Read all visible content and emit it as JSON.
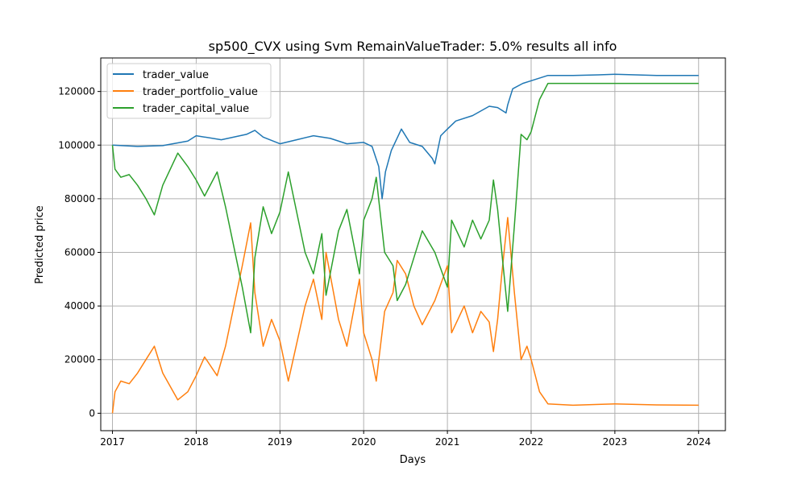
{
  "chart_data": {
    "type": "line",
    "title": "sp500_CVX using Svm RemainValueTrader: 5.0% results all info",
    "xlabel": "Days",
    "ylabel": "Predicted price",
    "xlim": [
      2016.86,
      2024.32
    ],
    "ylim": [
      -6500,
      132500
    ],
    "xticks": [
      2017,
      2018,
      2019,
      2020,
      2021,
      2022,
      2023,
      2024
    ],
    "xtick_labels": [
      "2017",
      "2018",
      "2019",
      "2020",
      "2021",
      "2022",
      "2023",
      "2024"
    ],
    "yticks": [
      0,
      20000,
      40000,
      60000,
      80000,
      100000,
      120000
    ],
    "ytick_labels": [
      "0",
      "20000",
      "40000",
      "60000",
      "80000",
      "100000",
      "120000"
    ],
    "grid": true,
    "legend_position": "top-left",
    "series": [
      {
        "name": "trader_value",
        "color": "#1f77b4",
        "points": [
          [
            2017.0,
            100000
          ],
          [
            2017.3,
            99500
          ],
          [
            2017.6,
            99800
          ],
          [
            2017.9,
            101500
          ],
          [
            2018.0,
            103500
          ],
          [
            2018.3,
            102000
          ],
          [
            2018.6,
            104000
          ],
          [
            2018.7,
            105500
          ],
          [
            2018.8,
            103000
          ],
          [
            2019.0,
            100500
          ],
          [
            2019.2,
            102000
          ],
          [
            2019.4,
            103500
          ],
          [
            2019.6,
            102500
          ],
          [
            2019.8,
            100500
          ],
          [
            2020.0,
            101000
          ],
          [
            2020.1,
            99500
          ],
          [
            2020.18,
            92000
          ],
          [
            2020.22,
            80000
          ],
          [
            2020.26,
            90000
          ],
          [
            2020.33,
            98000
          ],
          [
            2020.45,
            106000
          ],
          [
            2020.55,
            101000
          ],
          [
            2020.7,
            99500
          ],
          [
            2020.82,
            95000
          ],
          [
            2020.85,
            93000
          ],
          [
            2020.92,
            103500
          ],
          [
            2021.0,
            106000
          ],
          [
            2021.1,
            109000
          ],
          [
            2021.3,
            111000
          ],
          [
            2021.5,
            114500
          ],
          [
            2021.6,
            114000
          ],
          [
            2021.7,
            112000
          ],
          [
            2021.72,
            115000
          ],
          [
            2021.78,
            121000
          ],
          [
            2021.9,
            123000
          ],
          [
            2022.0,
            124000
          ],
          [
            2022.2,
            126000
          ],
          [
            2022.5,
            126000
          ],
          [
            2022.8,
            126200
          ],
          [
            2023.0,
            126400
          ],
          [
            2023.5,
            126000
          ],
          [
            2024.0,
            126000
          ]
        ]
      },
      {
        "name": "trader_portfolio_value",
        "color": "#ff7f0e",
        "points": [
          [
            2017.0,
            0
          ],
          [
            2017.03,
            8000
          ],
          [
            2017.1,
            12000
          ],
          [
            2017.2,
            11000
          ],
          [
            2017.3,
            15000
          ],
          [
            2017.4,
            20000
          ],
          [
            2017.5,
            25000
          ],
          [
            2017.6,
            15000
          ],
          [
            2017.78,
            5000
          ],
          [
            2017.9,
            8000
          ],
          [
            2018.0,
            14000
          ],
          [
            2018.1,
            21000
          ],
          [
            2018.25,
            14000
          ],
          [
            2018.35,
            25000
          ],
          [
            2018.45,
            40000
          ],
          [
            2018.55,
            55000
          ],
          [
            2018.65,
            71000
          ],
          [
            2018.7,
            45000
          ],
          [
            2018.8,
            25000
          ],
          [
            2018.9,
            35000
          ],
          [
            2019.0,
            27000
          ],
          [
            2019.1,
            12000
          ],
          [
            2019.3,
            40000
          ],
          [
            2019.4,
            50000
          ],
          [
            2019.5,
            35000
          ],
          [
            2019.55,
            60000
          ],
          [
            2019.7,
            35000
          ],
          [
            2019.8,
            25000
          ],
          [
            2019.95,
            50000
          ],
          [
            2020.0,
            30000
          ],
          [
            2020.1,
            20000
          ],
          [
            2020.15,
            12000
          ],
          [
            2020.25,
            38000
          ],
          [
            2020.35,
            45000
          ],
          [
            2020.4,
            57000
          ],
          [
            2020.5,
            52000
          ],
          [
            2020.6,
            40000
          ],
          [
            2020.7,
            33000
          ],
          [
            2020.85,
            42000
          ],
          [
            2021.0,
            55000
          ],
          [
            2021.05,
            30000
          ],
          [
            2021.2,
            40000
          ],
          [
            2021.3,
            30000
          ],
          [
            2021.4,
            38000
          ],
          [
            2021.5,
            34000
          ],
          [
            2021.55,
            23000
          ],
          [
            2021.6,
            35000
          ],
          [
            2021.65,
            52000
          ],
          [
            2021.72,
            73000
          ],
          [
            2021.8,
            45000
          ],
          [
            2021.88,
            20000
          ],
          [
            2021.95,
            25000
          ],
          [
            2022.0,
            20000
          ],
          [
            2022.1,
            8000
          ],
          [
            2022.2,
            3500
          ],
          [
            2022.5,
            3000
          ],
          [
            2022.8,
            3300
          ],
          [
            2023.0,
            3500
          ],
          [
            2023.5,
            3100
          ],
          [
            2024.0,
            3000
          ]
        ]
      },
      {
        "name": "trader_capital_value",
        "color": "#2ca02c",
        "points": [
          [
            2017.0,
            100000
          ],
          [
            2017.03,
            91000
          ],
          [
            2017.1,
            88000
          ],
          [
            2017.2,
            89000
          ],
          [
            2017.3,
            85000
          ],
          [
            2017.4,
            80000
          ],
          [
            2017.5,
            74000
          ],
          [
            2017.6,
            85000
          ],
          [
            2017.78,
            97000
          ],
          [
            2017.9,
            92000
          ],
          [
            2018.0,
            87000
          ],
          [
            2018.1,
            81000
          ],
          [
            2018.25,
            90000
          ],
          [
            2018.35,
            77000
          ],
          [
            2018.45,
            62000
          ],
          [
            2018.55,
            47000
          ],
          [
            2018.65,
            30000
          ],
          [
            2018.7,
            58000
          ],
          [
            2018.8,
            77000
          ],
          [
            2018.9,
            67000
          ],
          [
            2019.0,
            75000
          ],
          [
            2019.1,
            90000
          ],
          [
            2019.3,
            60000
          ],
          [
            2019.4,
            52000
          ],
          [
            2019.5,
            67000
          ],
          [
            2019.55,
            44000
          ],
          [
            2019.7,
            68000
          ],
          [
            2019.8,
            76000
          ],
          [
            2019.95,
            52000
          ],
          [
            2020.0,
            72000
          ],
          [
            2020.1,
            80000
          ],
          [
            2020.15,
            88000
          ],
          [
            2020.25,
            60000
          ],
          [
            2020.35,
            55000
          ],
          [
            2020.4,
            42000
          ],
          [
            2020.5,
            48000
          ],
          [
            2020.6,
            58000
          ],
          [
            2020.7,
            68000
          ],
          [
            2020.85,
            60000
          ],
          [
            2021.0,
            47000
          ],
          [
            2021.05,
            72000
          ],
          [
            2021.2,
            62000
          ],
          [
            2021.3,
            72000
          ],
          [
            2021.4,
            65000
          ],
          [
            2021.5,
            72000
          ],
          [
            2021.55,
            87000
          ],
          [
            2021.6,
            76000
          ],
          [
            2021.65,
            60000
          ],
          [
            2021.72,
            38000
          ],
          [
            2021.8,
            70000
          ],
          [
            2021.88,
            104000
          ],
          [
            2021.95,
            102000
          ],
          [
            2022.0,
            105000
          ],
          [
            2022.1,
            117000
          ],
          [
            2022.2,
            123000
          ],
          [
            2022.5,
            123000
          ],
          [
            2023.0,
            123000
          ],
          [
            2023.5,
            123000
          ],
          [
            2024.0,
            123000
          ]
        ]
      }
    ]
  }
}
